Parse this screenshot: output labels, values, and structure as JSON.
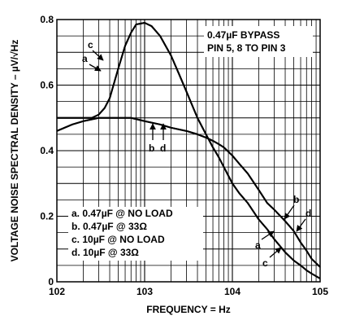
{
  "chart_data": {
    "type": "line",
    "xlabel": "FREQUENCY = Hz",
    "ylabel": "VOLTAGE NOISE SPECTRAL DENSITY – µV/√Hz",
    "x_scale": "log",
    "xlim": [
      100,
      100000
    ],
    "ylim": [
      0,
      0.8
    ],
    "x_ticks": [
      {
        "value": 100,
        "label": "102"
      },
      {
        "value": 1000,
        "label": "103"
      },
      {
        "value": 10000,
        "label": "104"
      },
      {
        "value": 100000,
        "label": "105"
      }
    ],
    "y_ticks": [
      {
        "value": 0,
        "label": "0"
      },
      {
        "value": 0.2,
        "label": "0.2"
      },
      {
        "value": 0.4,
        "label": "0.4"
      },
      {
        "value": 0.6,
        "label": "0.6"
      },
      {
        "value": 0.8,
        "label": "0.8"
      }
    ],
    "grid": true,
    "annotation": [
      "0.47µF BYPASS",
      "PIN 5, 8 TO PIN 3"
    ],
    "legend": [
      "a. 0.47µF @ NO LOAD",
      "b. 0.47µF @ 33Ω",
      "c. 10µF @ NO LOAD",
      "d. 10µF @ 33Ω"
    ],
    "curve_labels": {
      "a": "a",
      "b": "b",
      "c": "c",
      "d": "d"
    },
    "series": [
      {
        "name": "a",
        "x": [
          100,
          150,
          200,
          250,
          300,
          350,
          400,
          500,
          600,
          700,
          800,
          1000,
          1200,
          1500,
          2000,
          2500,
          3000,
          4000,
          5000,
          6000,
          7000,
          8000,
          10000,
          12000,
          15000,
          20000,
          25000,
          30000,
          40000,
          50000,
          60000,
          70000,
          80000,
          100000
        ],
        "y": [
          0.5,
          0.5,
          0.5,
          0.5,
          0.51,
          0.53,
          0.56,
          0.65,
          0.72,
          0.76,
          0.785,
          0.79,
          0.78,
          0.75,
          0.69,
          0.63,
          0.58,
          0.5,
          0.45,
          0.41,
          0.38,
          0.35,
          0.3,
          0.27,
          0.24,
          0.19,
          0.16,
          0.13,
          0.09,
          0.065,
          0.05,
          0.035,
          0.025,
          0.01
        ]
      },
      {
        "name": "b",
        "x": [
          100,
          150,
          200,
          300,
          500,
          700,
          1000,
          1500,
          2000,
          3000,
          4000,
          5000,
          6000,
          7000,
          8000,
          10000,
          12000,
          15000,
          20000,
          25000,
          30000,
          40000,
          50000,
          60000,
          70000,
          80000,
          100000
        ],
        "y": [
          0.46,
          0.48,
          0.49,
          0.5,
          0.5,
          0.5,
          0.49,
          0.48,
          0.47,
          0.46,
          0.45,
          0.44,
          0.43,
          0.42,
          0.41,
          0.385,
          0.36,
          0.33,
          0.28,
          0.24,
          0.22,
          0.185,
          0.155,
          0.12,
          0.095,
          0.07,
          0.045
        ]
      },
      {
        "name": "c",
        "x": [
          100,
          150,
          200,
          250,
          300,
          350,
          400,
          500,
          600,
          700,
          800,
          1000,
          1200,
          1500,
          2000,
          2500,
          3000,
          4000,
          5000,
          6000,
          7000,
          8000,
          10000,
          12000,
          15000,
          20000,
          25000,
          30000,
          40000,
          50000,
          60000,
          70000,
          80000,
          100000
        ],
        "y": [
          0.5,
          0.5,
          0.5,
          0.5,
          0.51,
          0.53,
          0.56,
          0.65,
          0.72,
          0.76,
          0.785,
          0.79,
          0.78,
          0.75,
          0.69,
          0.63,
          0.58,
          0.5,
          0.45,
          0.41,
          0.38,
          0.35,
          0.3,
          0.27,
          0.24,
          0.19,
          0.16,
          0.13,
          0.09,
          0.065,
          0.05,
          0.035,
          0.025,
          0.01
        ]
      },
      {
        "name": "d",
        "x": [
          100,
          150,
          200,
          300,
          500,
          700,
          1000,
          1500,
          2000,
          3000,
          4000,
          5000,
          6000,
          7000,
          8000,
          10000,
          12000,
          15000,
          20000,
          25000,
          30000,
          40000,
          50000,
          60000,
          70000,
          80000,
          100000
        ],
        "y": [
          0.46,
          0.48,
          0.49,
          0.5,
          0.5,
          0.5,
          0.49,
          0.48,
          0.47,
          0.46,
          0.45,
          0.44,
          0.43,
          0.42,
          0.41,
          0.385,
          0.36,
          0.33,
          0.28,
          0.24,
          0.22,
          0.185,
          0.155,
          0.12,
          0.095,
          0.07,
          0.045
        ]
      }
    ]
  }
}
